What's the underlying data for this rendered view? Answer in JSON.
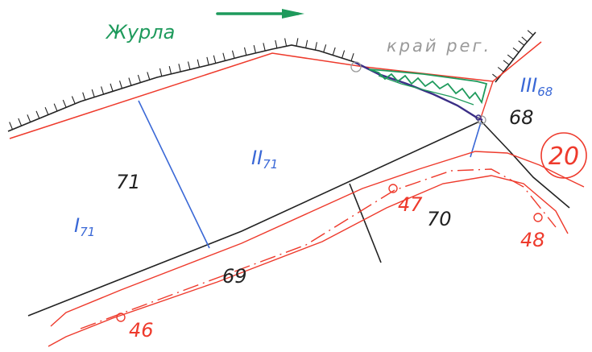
{
  "river": {
    "name": "Журла",
    "color": "#1e9a5c"
  },
  "edge_note": "край рег.",
  "parcels": [
    {
      "main": "I",
      "sub": "71"
    },
    {
      "main": "II",
      "sub": "71"
    },
    {
      "main": "III",
      "sub": "68"
    }
  ],
  "plot_numbers": [
    "71",
    "70",
    "69",
    "68"
  ],
  "sheet_number": "20",
  "road_markers": [
    "46",
    "47",
    "48"
  ],
  "colors": {
    "red_ink": "#ee3a2c",
    "blue_ink": "#3a68d6",
    "black_ink": "#222222",
    "green_ink": "#1e9a5c",
    "purple_ink": "#3b2e86",
    "pencil": "#9a9a9a"
  }
}
